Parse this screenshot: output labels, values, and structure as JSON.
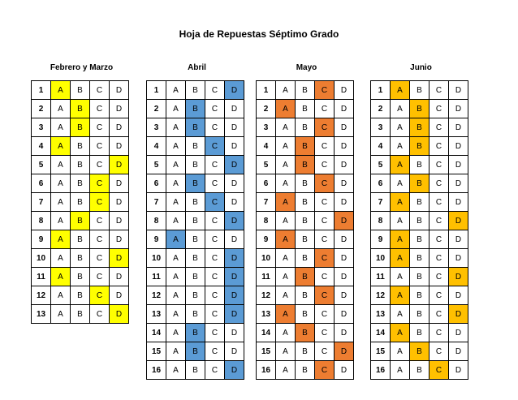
{
  "title": "Hoja de Repuestas Séptimo Grado",
  "options": [
    "A",
    "B",
    "C",
    "D"
  ],
  "months": [
    {
      "name": "Febrero y Marzo",
      "color": "#FFFF00",
      "answers": [
        "A",
        "B",
        "B",
        "A",
        "D",
        "C",
        "C",
        "B",
        "A",
        "D",
        "A",
        "C",
        "D"
      ]
    },
    {
      "name": "Abril",
      "color": "#5B9BD5",
      "answers": [
        "D",
        "B",
        "B",
        "C",
        "D",
        "B",
        "C",
        "D",
        "A",
        "D",
        "D",
        "D",
        "D",
        "B",
        "B",
        "D"
      ]
    },
    {
      "name": "Mayo",
      "color": "#ED7D31",
      "answers": [
        "C",
        "A",
        "C",
        "B",
        "B",
        "C",
        "A",
        "D",
        "A",
        "C",
        "B",
        "C",
        "A",
        "B",
        "D",
        "C"
      ]
    },
    {
      "name": "Junio",
      "color": "#FFC000",
      "answers": [
        "A",
        "B",
        "B",
        "B",
        "A",
        "B",
        "A",
        "D",
        "A",
        "A",
        "D",
        "A",
        "D",
        "A",
        "B",
        "C"
      ]
    }
  ]
}
